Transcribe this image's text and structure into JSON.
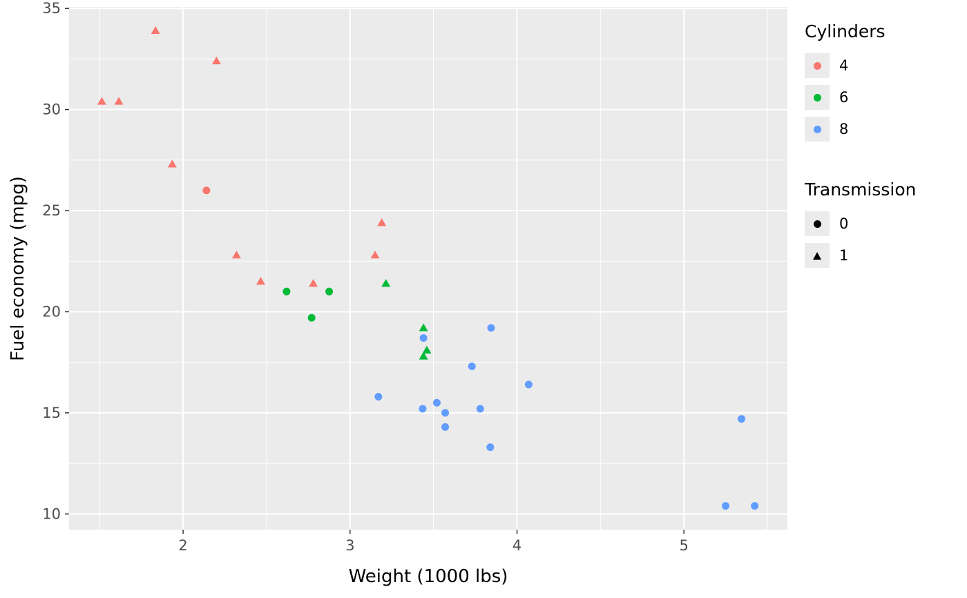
{
  "chart_data": {
    "type": "scatter",
    "title": "",
    "xlabel": "Weight (1000 lbs)",
    "ylabel": "Fuel economy (mpg)",
    "xlim": [
      1.317,
      5.62
    ],
    "ylim": [
      9.225,
      35.075
    ],
    "x_ticks": [
      2,
      3,
      4,
      5
    ],
    "y_ticks": [
      10,
      15,
      20,
      25,
      30,
      35
    ],
    "x_minor_ticks": [
      1.5,
      2.5,
      3.5,
      4.5,
      5.5
    ],
    "y_minor_ticks": [
      12.5,
      17.5,
      22.5,
      27.5,
      32.5
    ],
    "grid": true,
    "legend_position": "right",
    "panel_bg": "#EBEBEB",
    "grid_color": "#FFFFFF",
    "tick_label_color": "#4D4D4D",
    "tick_mark_color": "#333333",
    "legend_key_bg": "#EBEBEB",
    "series_colors": {
      "4": "#F8766D",
      "6": "#00BA38",
      "8": "#619CFF"
    },
    "color_legend": {
      "title": "Cylinders",
      "entries": [
        {
          "label": "4",
          "color": "#F8766D"
        },
        {
          "label": "6",
          "color": "#00BA38"
        },
        {
          "label": "8",
          "color": "#619CFF"
        }
      ]
    },
    "shape_legend": {
      "title": "Transmission",
      "entries": [
        {
          "label": "0",
          "shape": "circle"
        },
        {
          "label": "1",
          "shape": "triangle"
        }
      ]
    },
    "points": [
      {
        "wt": 2.62,
        "mpg": 21.0,
        "cyl": 6,
        "transmission": 0
      },
      {
        "wt": 2.875,
        "mpg": 21.0,
        "cyl": 6,
        "transmission": 0
      },
      {
        "wt": 2.32,
        "mpg": 22.8,
        "cyl": 4,
        "transmission": 1
      },
      {
        "wt": 3.215,
        "mpg": 21.4,
        "cyl": 6,
        "transmission": 1
      },
      {
        "wt": 3.44,
        "mpg": 18.7,
        "cyl": 8,
        "transmission": 0
      },
      {
        "wt": 3.46,
        "mpg": 18.1,
        "cyl": 6,
        "transmission": 1
      },
      {
        "wt": 3.57,
        "mpg": 14.3,
        "cyl": 8,
        "transmission": 0
      },
      {
        "wt": 3.19,
        "mpg": 24.4,
        "cyl": 4,
        "transmission": 1
      },
      {
        "wt": 3.15,
        "mpg": 22.8,
        "cyl": 4,
        "transmission": 1
      },
      {
        "wt": 3.44,
        "mpg": 19.2,
        "cyl": 6,
        "transmission": 1
      },
      {
        "wt": 3.44,
        "mpg": 17.8,
        "cyl": 6,
        "transmission": 1
      },
      {
        "wt": 4.07,
        "mpg": 16.4,
        "cyl": 8,
        "transmission": 0
      },
      {
        "wt": 3.73,
        "mpg": 17.3,
        "cyl": 8,
        "transmission": 0
      },
      {
        "wt": 3.78,
        "mpg": 15.2,
        "cyl": 8,
        "transmission": 0
      },
      {
        "wt": 5.25,
        "mpg": 10.4,
        "cyl": 8,
        "transmission": 0
      },
      {
        "wt": 5.424,
        "mpg": 10.4,
        "cyl": 8,
        "transmission": 0
      },
      {
        "wt": 5.345,
        "mpg": 14.7,
        "cyl": 8,
        "transmission": 0
      },
      {
        "wt": 2.2,
        "mpg": 32.4,
        "cyl": 4,
        "transmission": 1
      },
      {
        "wt": 1.615,
        "mpg": 30.4,
        "cyl": 4,
        "transmission": 1
      },
      {
        "wt": 1.835,
        "mpg": 33.9,
        "cyl": 4,
        "transmission": 1
      },
      {
        "wt": 2.465,
        "mpg": 21.5,
        "cyl": 4,
        "transmission": 1
      },
      {
        "wt": 3.52,
        "mpg": 15.5,
        "cyl": 8,
        "transmission": 0
      },
      {
        "wt": 3.435,
        "mpg": 15.2,
        "cyl": 8,
        "transmission": 0
      },
      {
        "wt": 3.84,
        "mpg": 13.3,
        "cyl": 8,
        "transmission": 0
      },
      {
        "wt": 3.845,
        "mpg": 19.2,
        "cyl": 8,
        "transmission": 0
      },
      {
        "wt": 1.935,
        "mpg": 27.3,
        "cyl": 4,
        "transmission": 1
      },
      {
        "wt": 2.14,
        "mpg": 26.0,
        "cyl": 4,
        "transmission": 0
      },
      {
        "wt": 1.513,
        "mpg": 30.4,
        "cyl": 4,
        "transmission": 1
      },
      {
        "wt": 3.17,
        "mpg": 15.8,
        "cyl": 8,
        "transmission": 0
      },
      {
        "wt": 2.77,
        "mpg": 19.7,
        "cyl": 6,
        "transmission": 0
      },
      {
        "wt": 3.57,
        "mpg": 15.0,
        "cyl": 8,
        "transmission": 0
      },
      {
        "wt": 2.78,
        "mpg": 21.4,
        "cyl": 4,
        "transmission": 1
      }
    ]
  }
}
